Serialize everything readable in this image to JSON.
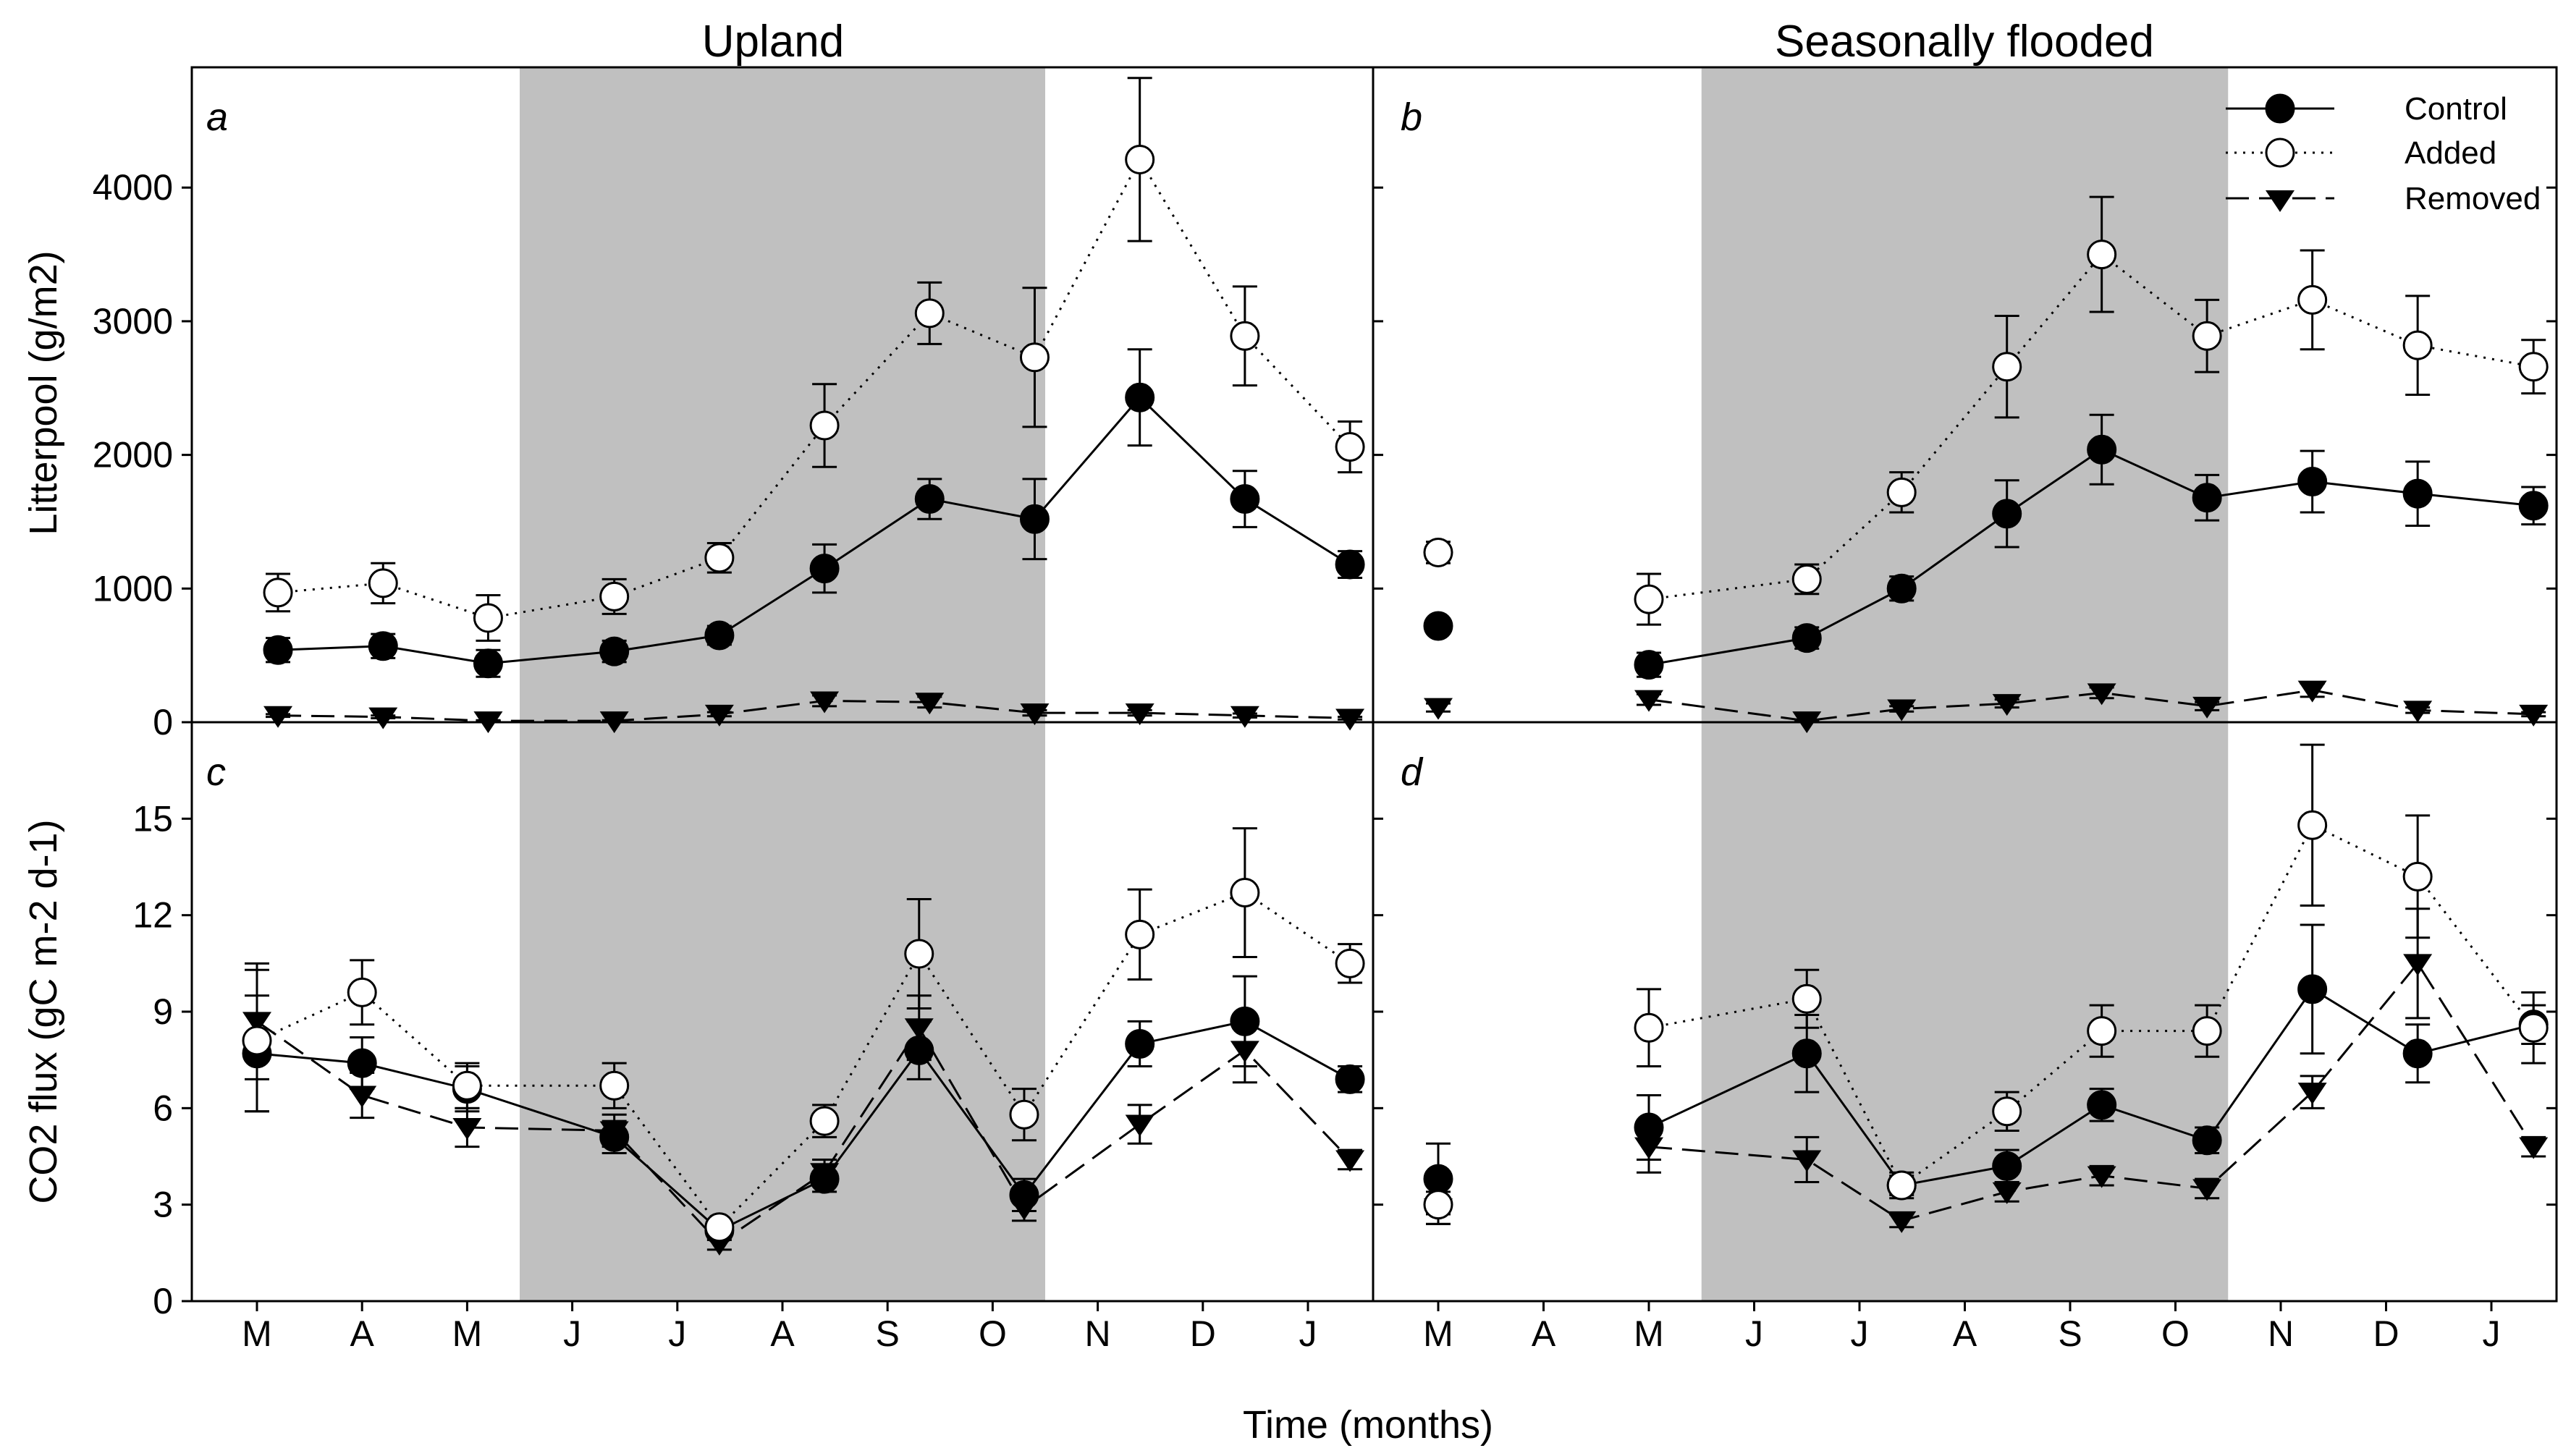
{
  "colors": {
    "shade": "#c0c0c0",
    "ink": "#000000",
    "background": "#ffffff"
  },
  "figure": {
    "column_titles": [
      "Upland",
      "Seasonally flooded"
    ],
    "xlabel": "Time (months)",
    "ylabel_top": "Litterpool (g/m2)",
    "ylabel_bottom": "CO2 flux (gC m-2 d-1)",
    "month_ticks": [
      "M",
      "A",
      "M",
      "J",
      "J",
      "A",
      "S",
      "O",
      "N",
      "D",
      "J"
    ],
    "legend": [
      {
        "label": "Control",
        "marker": "filled-circle",
        "line": "solid"
      },
      {
        "label": "Added",
        "marker": "open-circle",
        "line": "dotted"
      },
      {
        "label": "Removed",
        "marker": "filled-triangle-down",
        "line": "dashed"
      }
    ]
  },
  "chart_data": [
    {
      "panel": "a",
      "type": "line",
      "column": "Upland",
      "ylabel": "Litterpool (g/m2)",
      "xlim": [
        0,
        11
      ],
      "ylim": [
        0,
        4900
      ],
      "yticks": [
        0,
        1000,
        2000,
        3000,
        4000
      ],
      "shade_x": [
        2.5,
        7.5
      ],
      "series": [
        {
          "name": "Control",
          "x": [
            0.2,
            1.2,
            2.2,
            3.4,
            4.4,
            5.4,
            6.4,
            7.4,
            8.4,
            9.4,
            10.4
          ],
          "values": [
            540,
            570,
            440,
            530,
            650,
            1150,
            1670,
            1520,
            2430,
            1670,
            1180
          ],
          "errors": [
            90,
            90,
            100,
            80,
            70,
            180,
            150,
            300,
            360,
            210,
            100
          ]
        },
        {
          "name": "Added",
          "x": [
            0.2,
            1.2,
            2.2,
            3.4,
            4.4,
            5.4,
            6.4,
            7.4,
            8.4,
            9.4,
            10.4
          ],
          "values": [
            970,
            1040,
            780,
            940,
            1230,
            2220,
            3060,
            2730,
            4210,
            2890,
            2060
          ],
          "errors": [
            140,
            150,
            170,
            130,
            110,
            310,
            230,
            520,
            610,
            370,
            190
          ]
        },
        {
          "name": "Removed",
          "x": [
            0.2,
            1.2,
            2.2,
            3.4,
            4.4,
            5.4,
            6.4,
            7.4,
            8.4,
            9.4,
            10.4
          ],
          "values": [
            50,
            40,
            10,
            10,
            60,
            160,
            150,
            70,
            70,
            50,
            30
          ],
          "errors": [
            10,
            10,
            5,
            5,
            15,
            40,
            40,
            20,
            20,
            15,
            10
          ]
        }
      ]
    },
    {
      "panel": "b",
      "type": "line",
      "column": "Seasonally flooded",
      "ylabel": "Litterpool (g/m2)",
      "xlim": [
        0,
        11
      ],
      "ylim": [
        0,
        4900
      ],
      "yticks": [
        0,
        1000,
        2000,
        3000,
        4000
      ],
      "shade_x": [
        2.5,
        7.5
      ],
      "series": [
        {
          "name": "Control",
          "x": [
            0,
            2,
            3.5,
            4.4,
            5.4,
            6.3,
            7.3,
            8.3,
            9.3,
            10.4
          ],
          "values": [
            720,
            430,
            630,
            1000,
            1560,
            2040,
            1680,
            1800,
            1710,
            1620
          ],
          "errors": [
            null,
            90,
            80,
            90,
            250,
            260,
            170,
            230,
            240,
            140
          ]
        },
        {
          "name": "Added",
          "x": [
            0,
            2,
            3.5,
            4.4,
            5.4,
            6.3,
            7.3,
            8.3,
            9.3,
            10.4
          ],
          "values": [
            1270,
            920,
            1070,
            1720,
            2660,
            3500,
            2890,
            3160,
            2820,
            2660
          ],
          "errors": [
            80,
            190,
            110,
            150,
            380,
            430,
            270,
            370,
            370,
            200
          ]
        },
        {
          "name": "Removed",
          "x": [
            0,
            2,
            3.5,
            4.4,
            5.4,
            6.3,
            7.3,
            8.3,
            9.3,
            10.4
          ],
          "values": [
            110,
            170,
            10,
            100,
            140,
            220,
            120,
            240,
            90,
            60
          ],
          "errors": [
            30,
            40,
            5,
            20,
            30,
            40,
            30,
            50,
            20,
            15
          ]
        }
      ]
    },
    {
      "panel": "c",
      "type": "line",
      "column": "Upland",
      "ylabel": "CO2 flux (gC m-2 d-1)",
      "xlim": [
        0,
        11
      ],
      "ylim": [
        0,
        18
      ],
      "yticks": [
        0,
        3,
        6,
        9,
        12,
        15
      ],
      "shade_x": [
        2.5,
        7.5
      ],
      "series": [
        {
          "name": "Control",
          "x": [
            0,
            1,
            2,
            3.4,
            4.4,
            5.4,
            6.3,
            7.3,
            8.4,
            9.4,
            10.4
          ],
          "values": [
            7.7,
            7.4,
            6.6,
            5.1,
            2.2,
            3.8,
            7.8,
            3.3,
            8.0,
            8.7,
            6.9
          ],
          "errors": [
            1.8,
            0.8,
            0.7,
            0.5,
            0.3,
            0.4,
            0.9,
            0.5,
            0.7,
            1.4,
            0.4
          ]
        },
        {
          "name": "Added",
          "x": [
            0,
            1,
            2,
            3.4,
            4.4,
            5.4,
            6.3,
            7.3,
            8.4,
            9.4,
            10.4
          ],
          "values": [
            8.1,
            9.6,
            6.7,
            6.7,
            2.3,
            5.6,
            10.8,
            5.8,
            11.4,
            12.7,
            10.5
          ],
          "errors": [
            2.2,
            1.0,
            0.7,
            0.7,
            0.2,
            0.5,
            1.7,
            0.8,
            1.4,
            2.0,
            0.6
          ]
        },
        {
          "name": "Removed",
          "x": [
            0,
            1,
            2,
            3.4,
            4.4,
            5.4,
            6.3,
            7.3,
            8.4,
            9.4,
            10.4
          ],
          "values": [
            8.7,
            6.4,
            5.4,
            5.3,
            1.8,
            4.0,
            8.5,
            2.9,
            5.5,
            7.8,
            4.4
          ],
          "errors": [
            1.8,
            0.7,
            0.6,
            0.5,
            0.2,
            0.4,
            1.0,
            0.4,
            0.6,
            1.0,
            0.3
          ]
        }
      ]
    },
    {
      "panel": "d",
      "type": "line",
      "column": "Seasonally flooded",
      "ylabel": "CO2 flux (gC m-2 d-1)",
      "xlim": [
        0,
        11
      ],
      "ylim": [
        0,
        18
      ],
      "yticks": [
        0,
        3,
        6,
        9,
        12,
        15
      ],
      "shade_x": [
        2.5,
        7.5
      ],
      "series": [
        {
          "name": "Control",
          "x": [
            0,
            2,
            3.5,
            4.4,
            5.4,
            6.3,
            7.3,
            8.3,
            9.3,
            10.4
          ],
          "values": [
            3.8,
            5.4,
            7.7,
            3.6,
            4.2,
            6.1,
            5.0,
            9.7,
            7.7,
            8.6
          ],
          "errors": [
            1.1,
            1.0,
            1.2,
            0.3,
            0.5,
            0.5,
            0.4,
            2.0,
            0.9,
            0.6
          ]
        },
        {
          "name": "Added",
          "x": [
            0,
            2,
            3.5,
            4.4,
            5.4,
            6.3,
            7.3,
            8.3,
            9.3,
            10.4
          ],
          "values": [
            3.0,
            8.5,
            9.4,
            3.6,
            5.9,
            8.4,
            8.4,
            14.8,
            13.2,
            8.5
          ],
          "errors": [
            0.6,
            1.2,
            0.9,
            0.4,
            0.6,
            0.8,
            0.8,
            2.5,
            1.9,
            1.1
          ]
        },
        {
          "name": "Removed",
          "x": [
            0,
            2,
            3.5,
            4.4,
            5.4,
            6.3,
            7.3,
            8.3,
            9.3,
            10.4
          ],
          "values": [
            2.9,
            4.8,
            4.4,
            2.5,
            3.4,
            3.9,
            3.5,
            6.5,
            10.5,
            4.8
          ],
          "errors": [
            0.5,
            0.8,
            0.7,
            0.2,
            0.3,
            0.3,
            0.3,
            0.5,
            1.7,
            0.3
          ]
        }
      ]
    }
  ]
}
